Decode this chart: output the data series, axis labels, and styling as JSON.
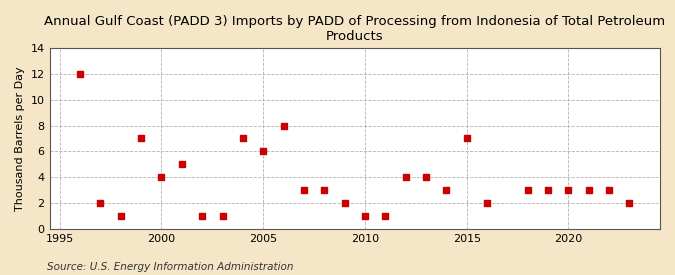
{
  "title": "Annual Gulf Coast (PADD 3) Imports by PADD of Processing from Indonesia of Total Petroleum\nProducts",
  "ylabel": "Thousand Barrels per Day",
  "source": "Source: U.S. Energy Information Administration",
  "xlim": [
    1994.5,
    2024.5
  ],
  "ylim": [
    0,
    14
  ],
  "yticks": [
    0,
    2,
    4,
    6,
    8,
    10,
    12,
    14
  ],
  "xticks": [
    1995,
    2000,
    2005,
    2010,
    2015,
    2020
  ],
  "figure_bg": "#f5e6c8",
  "plot_bg": "#ffffff",
  "marker_color": "#cc0000",
  "grid_color": "#aaaaaa",
  "data_x": [
    1996,
    1997,
    1998,
    1999,
    2000,
    2001,
    2002,
    2003,
    2004,
    2005,
    2006,
    2007,
    2008,
    2009,
    2010,
    2011,
    2012,
    2013,
    2014,
    2015,
    2016,
    2018,
    2019,
    2020,
    2021,
    2022,
    2023
  ],
  "data_y": [
    12,
    2,
    1,
    7,
    4,
    5,
    1,
    1,
    7,
    6,
    8,
    3,
    3,
    2,
    1,
    1,
    4,
    4,
    3,
    7,
    2,
    3,
    3,
    3,
    3,
    3,
    2
  ],
  "title_fontsize": 9.5,
  "axis_fontsize": 8,
  "tick_fontsize": 8,
  "source_fontsize": 7.5
}
